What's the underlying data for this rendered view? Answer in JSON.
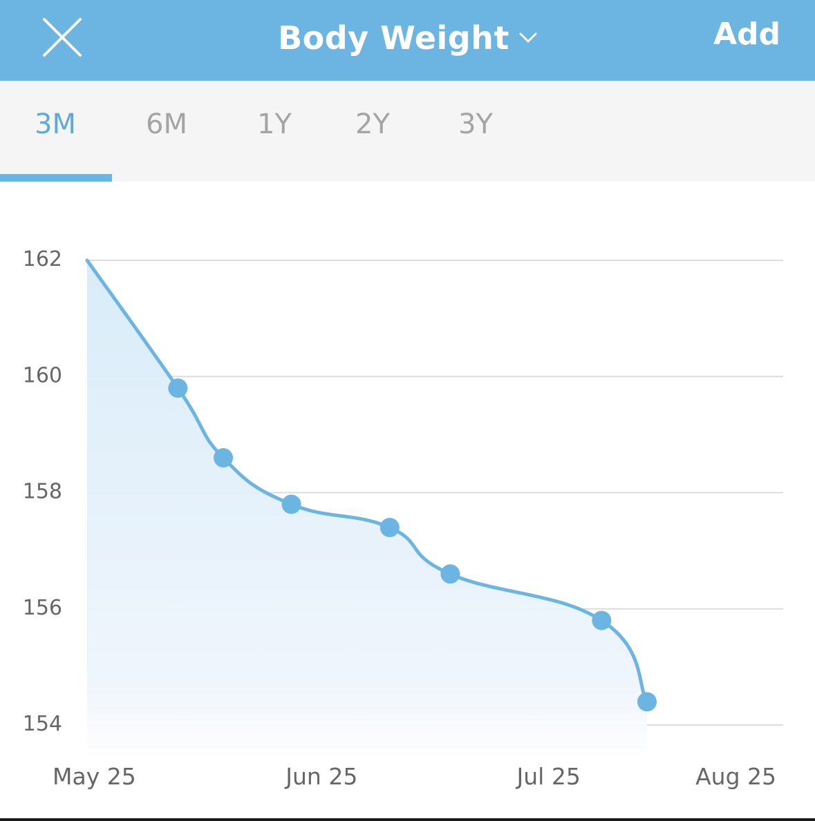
{
  "header": {
    "title": "Body Weight",
    "add_label": "Add",
    "background": "#6cb4e2",
    "icons": {
      "close": "close-icon",
      "dropdown": "chevron-down-icon"
    }
  },
  "tabs": [
    {
      "label": "3M",
      "active": true
    },
    {
      "label": "6M",
      "active": false
    },
    {
      "label": "1Y",
      "active": false
    },
    {
      "label": "2Y",
      "active": false
    },
    {
      "label": "3Y",
      "active": false
    }
  ],
  "colors": {
    "accent": "#6cb4e2",
    "line": "#6cb4e2",
    "point": "#6cb4e2",
    "grid": "#dcdcdc",
    "tab_inactive": "#a4a4a4"
  },
  "chart_data": {
    "type": "line",
    "title": "",
    "xlabel": "",
    "ylabel": "",
    "x_ticks": [
      "May 25",
      "Jun 25",
      "Jul 25",
      "Aug 25"
    ],
    "y_ticks": [
      162,
      160,
      158,
      156,
      154
    ],
    "ylim": [
      154,
      162
    ],
    "xlim": [
      "2024-05-25",
      "2024-08-25"
    ],
    "grid": true,
    "smooth": true,
    "area_fill": true,
    "series": [
      {
        "points": [
          {
            "x": "2024-05-25",
            "y": 162.0,
            "marker": false
          },
          {
            "x": "2024-06-06",
            "y": 159.8,
            "marker": true
          },
          {
            "x": "2024-06-12",
            "y": 158.6,
            "marker": true
          },
          {
            "x": "2024-06-21",
            "y": 157.8,
            "marker": true
          },
          {
            "x": "2024-07-04",
            "y": 157.4,
            "marker": true
          },
          {
            "x": "2024-07-12",
            "y": 156.6,
            "marker": true
          },
          {
            "x": "2024-08-01",
            "y": 155.8,
            "marker": true
          },
          {
            "x": "2024-08-07",
            "y": 154.4,
            "marker": true
          }
        ]
      }
    ]
  }
}
